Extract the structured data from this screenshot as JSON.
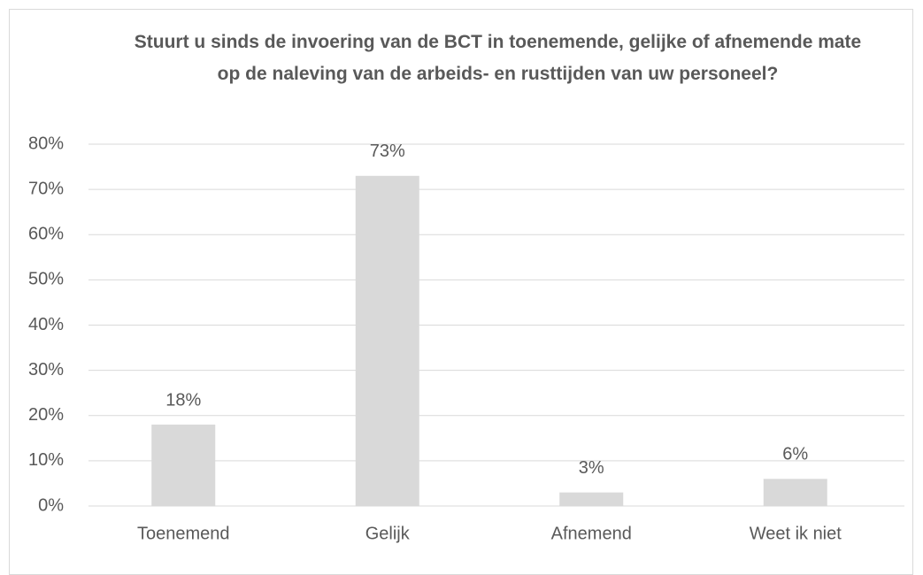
{
  "chart_data": {
    "type": "bar",
    "title": "Stuurt u sinds de invoering van de BCT in toenemende, gelijke of afnemende mate op de naleving van de arbeids- en rusttijden van uw personeel?",
    "categories": [
      "Toenemend",
      "Gelijk",
      "Afnemend",
      "Weet ik niet"
    ],
    "values": [
      18,
      73,
      3,
      6
    ],
    "value_labels": [
      "18%",
      "73%",
      "3%",
      "6%"
    ],
    "color": "#d9d9d9",
    "ylim": [
      0,
      80
    ],
    "yticks": [
      {
        "value": 0,
        "label": "0%"
      },
      {
        "value": 10,
        "label": "10%"
      },
      {
        "value": 20,
        "label": "20%"
      },
      {
        "value": 30,
        "label": "30%"
      },
      {
        "value": 40,
        "label": "40%"
      },
      {
        "value": 50,
        "label": "50%"
      },
      {
        "value": 60,
        "label": "60%"
      },
      {
        "value": 70,
        "label": "70%"
      },
      {
        "value": 80,
        "label": "80%"
      }
    ],
    "grid": true
  }
}
